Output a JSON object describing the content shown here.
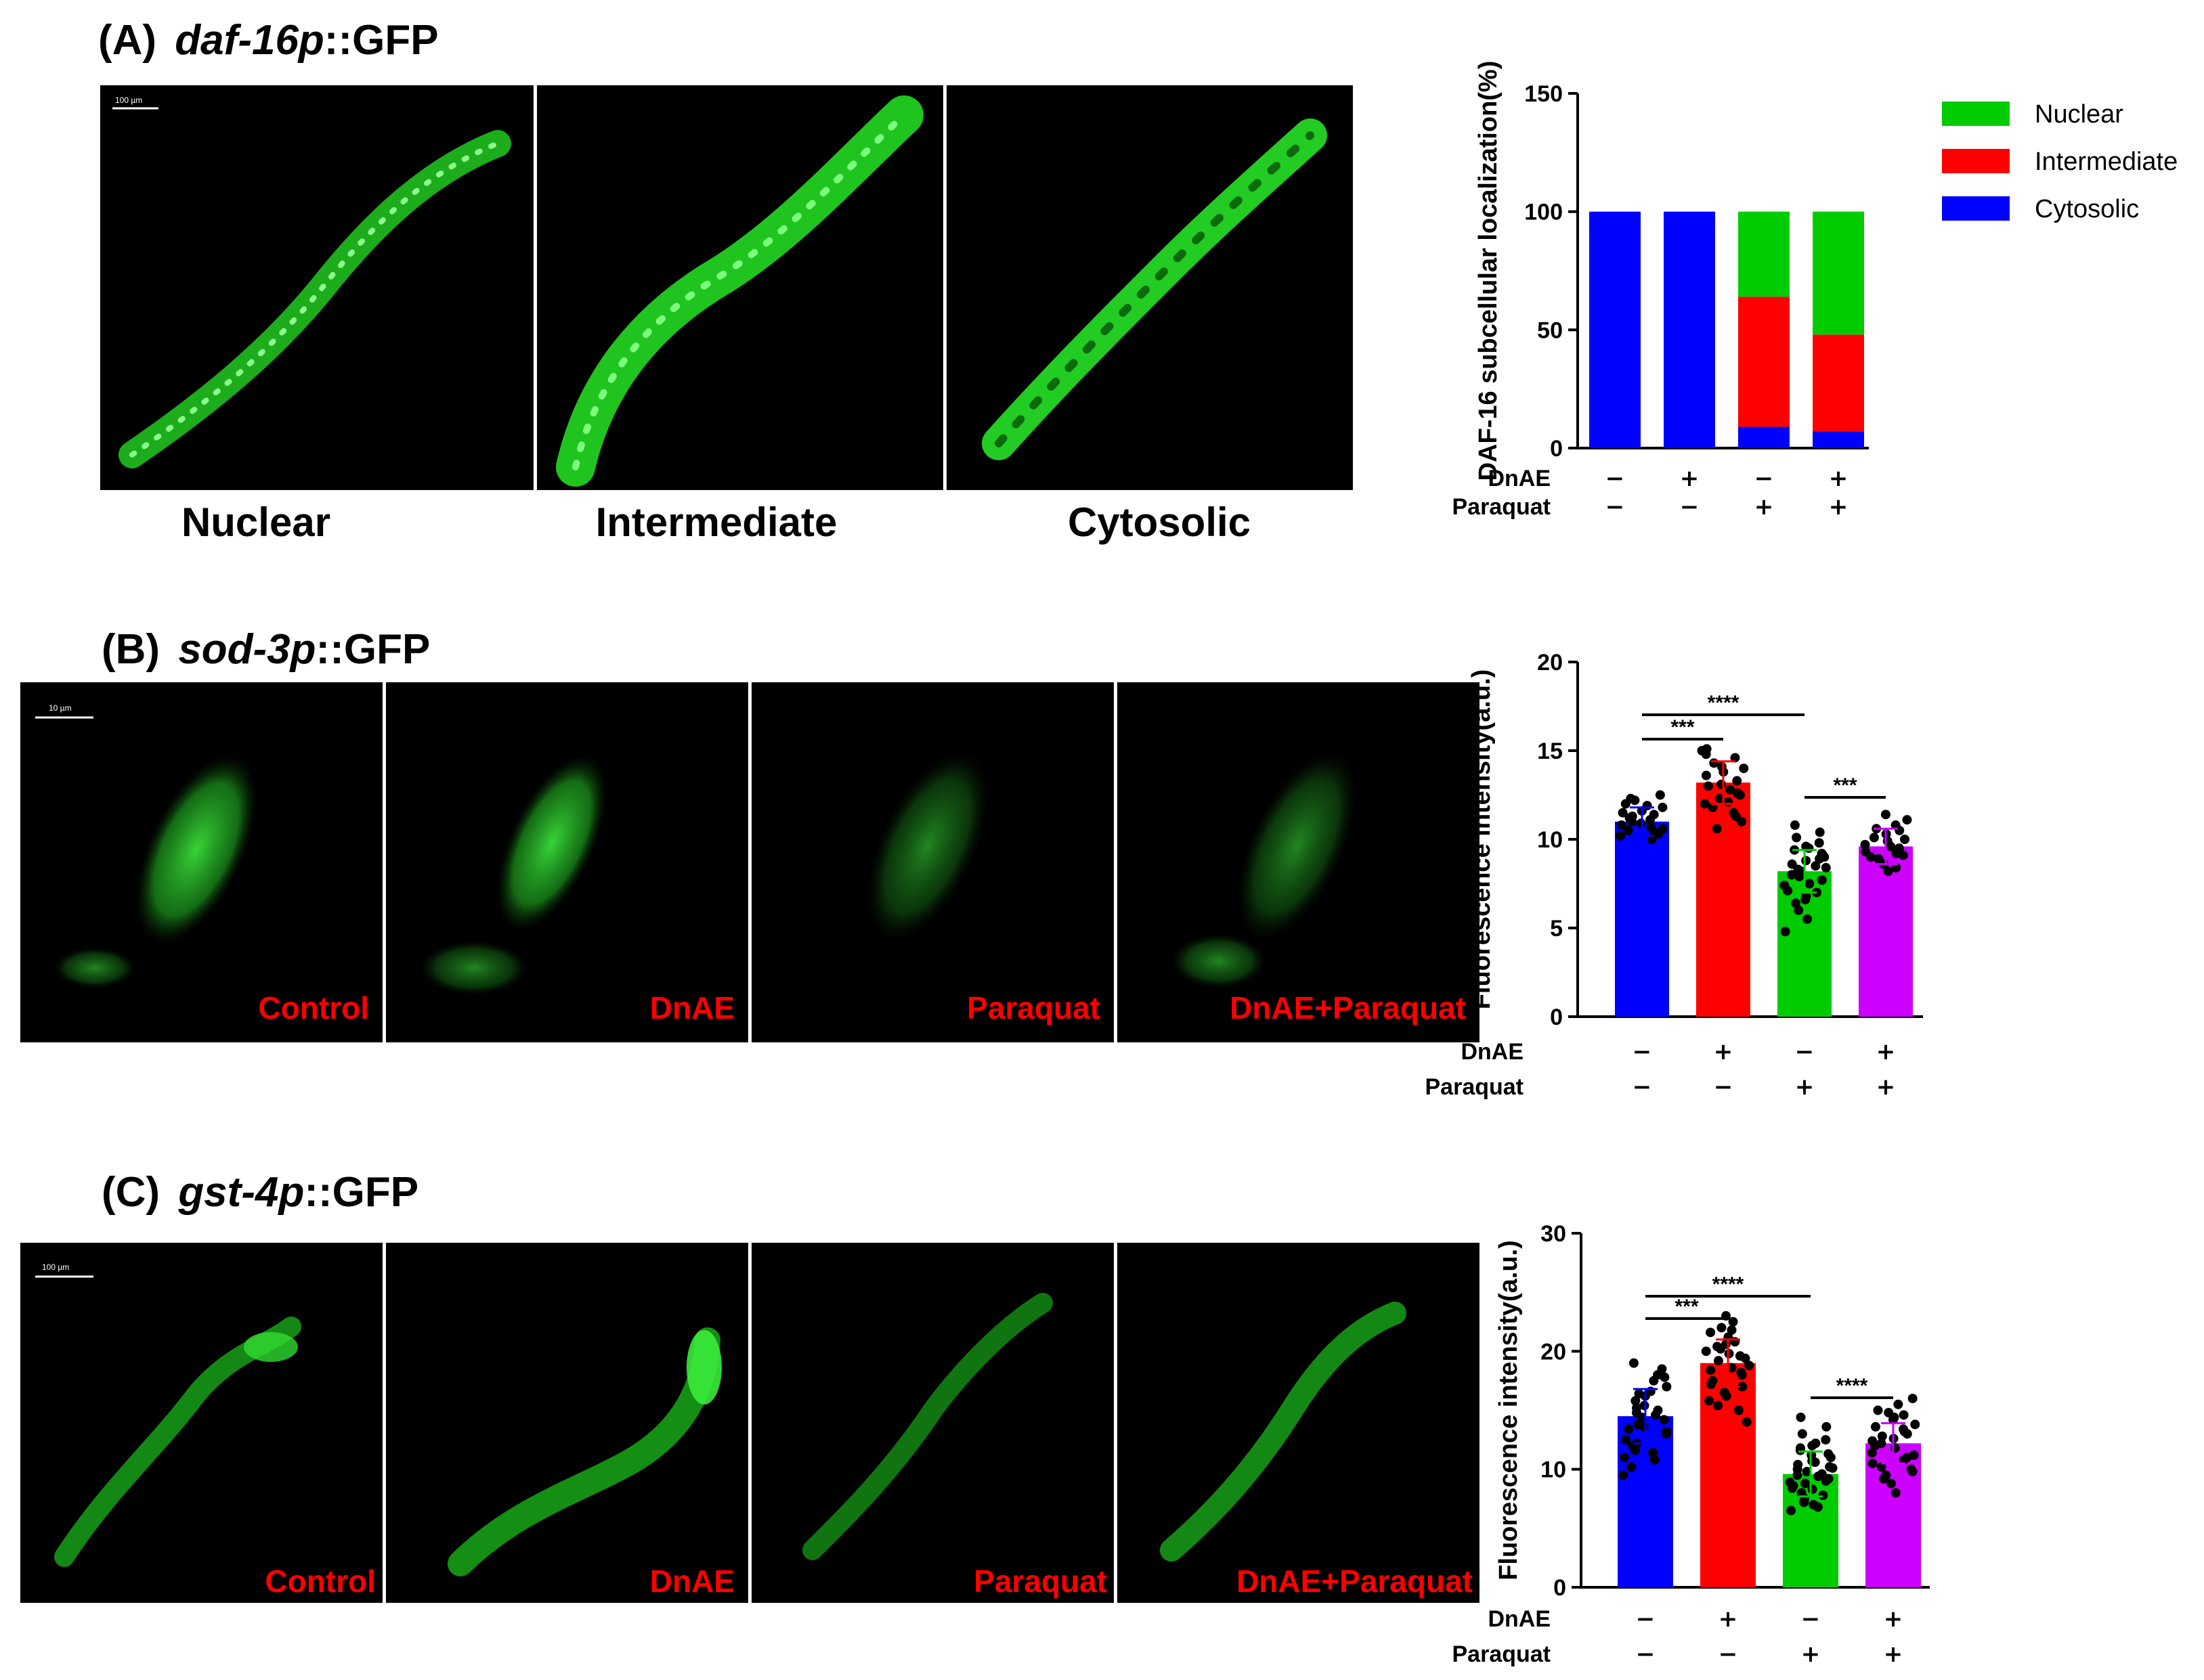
{
  "panel_a": {
    "letter": "(A)",
    "gene": "daf-16p",
    "suffix": "::GFP",
    "scale_bar": "100 µm",
    "captions": [
      "Nuclear",
      "Intermediate",
      "Cytosolic"
    ]
  },
  "panel_b": {
    "letter": "(B)",
    "gene": "sod-3p",
    "suffix": "::GFP",
    "scale_bar": "10 µm",
    "labels": [
      "Control",
      "DnAE",
      "Paraquat",
      "DnAE+Paraquat"
    ]
  },
  "panel_c": {
    "letter": "(C)",
    "gene": "gst-4p",
    "suffix": "::GFP",
    "scale_bar": "100 µm",
    "labels": [
      "Control",
      "DnAE",
      "Paraquat",
      "DnAE+Paraquat"
    ]
  },
  "treatment_rows": {
    "row1_label": "DnAE",
    "row2_label": "Paraquat",
    "row1_signs": [
      "−",
      "+",
      "−",
      "+"
    ],
    "row2_signs": [
      "−",
      "−",
      "+",
      "+"
    ]
  },
  "colors": {
    "blue": "#0000ff",
    "red": "#ff0000",
    "green": "#00cc00",
    "purple": "#cc00ff",
    "gfp": "#2bdc2b"
  },
  "chart_data": [
    {
      "type": "bar",
      "stacked": true,
      "categories": [
        "1",
        "2",
        "3",
        "4"
      ],
      "series": [
        {
          "name": "Cytosolic",
          "color": "#0000ff",
          "values": [
            100,
            100,
            9,
            7
          ]
        },
        {
          "name": "Intermediate",
          "color": "#ff0000",
          "values": [
            0,
            0,
            55,
            41
          ]
        },
        {
          "name": "Nuclear",
          "color": "#00cc00",
          "values": [
            0,
            0,
            36,
            52
          ]
        }
      ],
      "ylabel": "DAF-16 subcellular localization(%)",
      "ylim": [
        0,
        150
      ],
      "yticks": [
        0,
        50,
        100,
        150
      ],
      "legend": [
        "Nuclear",
        "Intermediate",
        "Cytosolic"
      ],
      "legend_position": "right"
    },
    {
      "type": "bar",
      "categories": [
        "1",
        "2",
        "3",
        "4"
      ],
      "values": [
        11.0,
        13.2,
        8.2,
        9.6
      ],
      "errors": [
        0.8,
        1.2,
        1.2,
        1.0
      ],
      "colors": [
        "#0000ff",
        "#ff0000",
        "#00cc00",
        "#cc00ff"
      ],
      "ylabel": "Fluorescence intensity(a.u.)",
      "ylim": [
        0,
        20
      ],
      "yticks": [
        0,
        5,
        10,
        15,
        20
      ],
      "points": [
        [
          10.2,
          10.5,
          10.8,
          11.0,
          11.2,
          11.5,
          11.8,
          12.0,
          12.2,
          12.5,
          10.0,
          10.4,
          10.9,
          11.3,
          11.6,
          11.9,
          10.6,
          11.1,
          11.4,
          10.3,
          12.3,
          10.7
        ],
        [
          11.0,
          11.5,
          12.0,
          12.3,
          12.6,
          13.0,
          13.3,
          13.6,
          14.0,
          14.3,
          14.6,
          15.0,
          11.8,
          12.8,
          13.8,
          14.8,
          10.6,
          12.1,
          13.1,
          14.1,
          15.1,
          11.3,
          12.5
        ],
        [
          4.8,
          5.5,
          6.0,
          6.4,
          6.8,
          7.1,
          7.4,
          7.7,
          8.0,
          8.2,
          8.4,
          8.6,
          8.8,
          9.0,
          9.2,
          9.4,
          9.6,
          9.8,
          10.1,
          10.4,
          10.8,
          7.0,
          7.9,
          8.5,
          9.1,
          6.6,
          7.5,
          8.3,
          8.9,
          9.5
        ],
        [
          8.2,
          8.6,
          8.9,
          9.1,
          9.3,
          9.5,
          9.7,
          9.9,
          10.1,
          10.3,
          10.5,
          10.8,
          11.1,
          11.4,
          8.4,
          9.0,
          9.6,
          10.0,
          10.6,
          9.2
        ]
      ],
      "significance": [
        {
          "from": 0,
          "to": 1,
          "label": "***"
        },
        {
          "from": 0,
          "to": 2,
          "label": "****"
        },
        {
          "from": 2,
          "to": 3,
          "label": "***"
        }
      ]
    },
    {
      "type": "bar",
      "categories": [
        "1",
        "2",
        "3",
        "4"
      ],
      "values": [
        14.5,
        19.0,
        9.6,
        12.2
      ],
      "errors": [
        2.3,
        2.0,
        1.9,
        1.7
      ],
      "colors": [
        "#0000ff",
        "#ff0000",
        "#00cc00",
        "#cc00ff"
      ],
      "ylabel": "Fluorescence intensity(a.u.)",
      "ylim": [
        0,
        30
      ],
      "yticks": [
        0,
        10,
        20,
        30
      ],
      "points": [
        [
          9.5,
          10.2,
          11.0,
          11.6,
          12.0,
          12.5,
          13.0,
          13.4,
          13.8,
          14.2,
          14.6,
          15.0,
          15.4,
          15.8,
          16.2,
          16.6,
          17.0,
          17.5,
          18.0,
          18.5,
          19.0,
          10.8,
          12.2,
          13.6,
          14.4,
          15.2,
          16.4,
          17.8,
          11.4,
          13.2,
          14.8
        ],
        [
          14.0,
          15.0,
          15.8,
          16.5,
          17.0,
          17.5,
          18.0,
          18.4,
          18.8,
          19.2,
          19.6,
          20.0,
          20.4,
          20.8,
          21.2,
          21.6,
          22.0,
          22.5,
          23.0,
          16.2,
          17.2,
          18.2,
          19.4,
          20.2,
          21.0,
          21.8,
          15.4,
          18.6,
          19.8,
          20.6
        ],
        [
          6.5,
          7.0,
          7.5,
          8.0,
          8.3,
          8.6,
          8.9,
          9.2,
          9.5,
          9.8,
          10.1,
          10.4,
          10.7,
          11.0,
          11.3,
          11.6,
          12.0,
          12.5,
          13.0,
          13.6,
          14.4,
          7.8,
          8.8,
          9.6,
          10.2,
          11.2,
          12.2,
          7.2,
          9.0,
          10.6,
          8.4,
          9.4,
          10.0,
          11.8,
          6.8
        ],
        [
          8.0,
          8.8,
          9.5,
          10.0,
          10.5,
          11.0,
          11.4,
          11.8,
          12.2,
          12.6,
          13.0,
          13.4,
          13.8,
          14.2,
          14.6,
          15.0,
          15.5,
          16.0,
          9.2,
          10.8,
          12.4,
          13.6,
          14.8,
          11.2,
          12.0,
          12.8,
          10.2,
          13.2,
          14.4,
          9.8
        ]
      ],
      "significance": [
        {
          "from": 0,
          "to": 1,
          "label": "***"
        },
        {
          "from": 0,
          "to": 2,
          "label": "****"
        },
        {
          "from": 2,
          "to": 3,
          "label": "****"
        }
      ]
    }
  ]
}
